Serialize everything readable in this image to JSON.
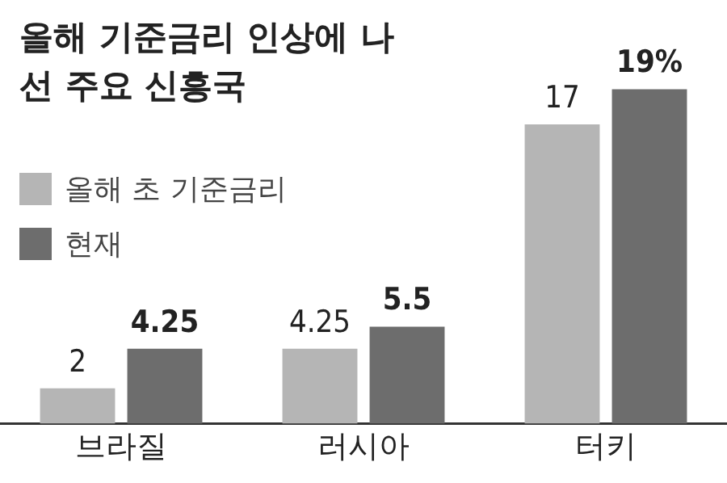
{
  "chart_data": {
    "type": "bar",
    "title": "올해 기준금리 인상에 나선 주요 신흥국",
    "categories": [
      "브라질",
      "러시아",
      "터키"
    ],
    "series": [
      {
        "name": "올해 초 기준금리",
        "color": "#b5b5b5",
        "values": [
          2,
          4.25,
          17
        ],
        "value_labels": [
          "2",
          "4.25",
          "17"
        ]
      },
      {
        "name": "현재",
        "color": "#6d6d6d",
        "values": [
          4.25,
          5.5,
          19
        ],
        "value_labels": [
          "4.25",
          "5.5",
          "19%"
        ]
      }
    ],
    "legend": "top left",
    "grid": false
  }
}
